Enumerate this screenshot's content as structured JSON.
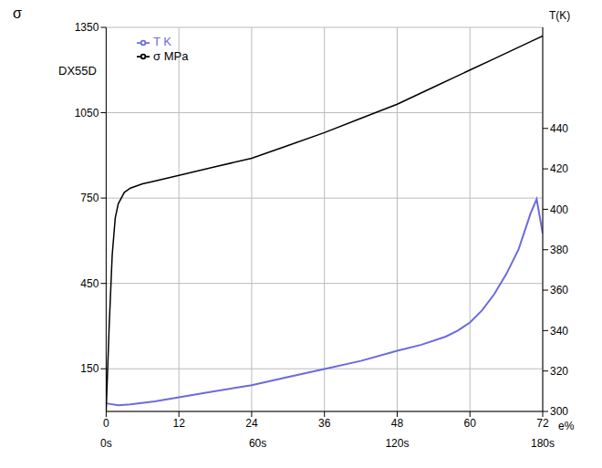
{
  "chart_data": {
    "type": "line",
    "title": "DX55D",
    "xlabel": "e%",
    "ylabel": "σ",
    "y2label": "T(K)",
    "xlim": [
      0,
      72
    ],
    "xticks": [
      0,
      12,
      24,
      36,
      48,
      60,
      72
    ],
    "x2ticks": [
      {
        "value": 0,
        "label": "0s"
      },
      {
        "value": 25,
        "label": "60s"
      },
      {
        "value": 48,
        "label": "120s"
      },
      {
        "value": 72,
        "label": "180s"
      }
    ],
    "ylim": [
      0,
      1350
    ],
    "yticks": [
      150,
      450,
      750,
      1050,
      1350
    ],
    "y2lim": [
      300,
      490
    ],
    "y2ticks": [
      300,
      320,
      340,
      360,
      380,
      400,
      420,
      440
    ],
    "grid": true,
    "legend": "upper left",
    "series": [
      {
        "name": "T K",
        "color": "#6b6bdd",
        "axis": "y2",
        "x": [
          0,
          2,
          4,
          8,
          12,
          18,
          24,
          30,
          36,
          42,
          48,
          52,
          56,
          58,
          60,
          62,
          64,
          66,
          68,
          70,
          71,
          72
        ],
        "values": [
          304,
          303,
          303.5,
          305,
          307,
          310,
          313,
          317,
          321,
          325,
          330,
          333,
          337,
          340,
          344,
          350,
          358,
          368,
          380,
          398,
          405,
          388
        ]
      },
      {
        "name": "σ MPa",
        "color": "#000000",
        "x": [
          0,
          0.5,
          1,
          1.5,
          2,
          3,
          4,
          6,
          8,
          12,
          18,
          24,
          30,
          36,
          42,
          48,
          54,
          60,
          64,
          68,
          70,
          72
        ],
        "values": [
          0,
          300,
          550,
          680,
          730,
          770,
          785,
          800,
          810,
          830,
          860,
          890,
          935,
          980,
          1030,
          1080,
          1140,
          1200,
          1240,
          1280,
          1300,
          1320
        ]
      }
    ]
  }
}
